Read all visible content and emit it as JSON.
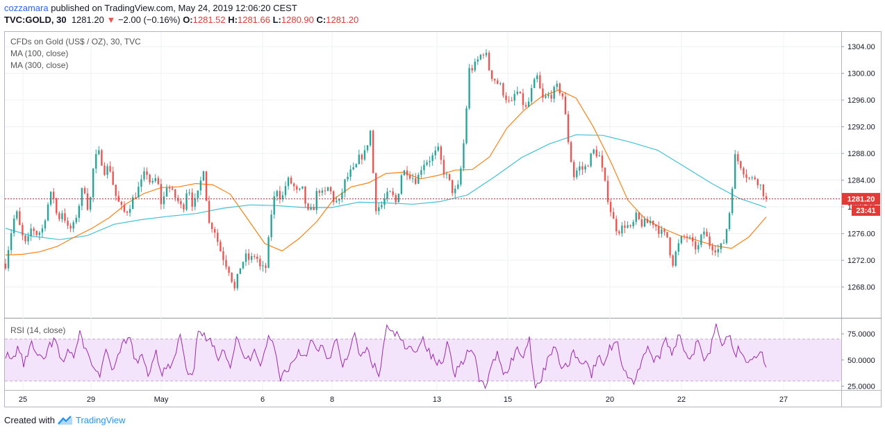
{
  "header": {
    "author": "cozzamara",
    "published": "published on TradingView.com, May 24, 2019 12:06:20 CEST",
    "symbol": "TVC:GOLD, 30",
    "last": "1281.20",
    "change_arrow": "▼",
    "change": "−2.00 (−0.16%)",
    "o_label": "O:",
    "o_value": "1281.52",
    "h_label": "H:",
    "h_value": "1281.66",
    "l_label": "L:",
    "l_value": "1280.90",
    "c_label": "C:",
    "c_value": "1281.20"
  },
  "legend": {
    "main": "CFDs on Gold (US$ / OZ), 30, TVC",
    "ma100": "MA (100, close)",
    "ma300": "MA (300, close)",
    "rsi": "RSI (14, close)"
  },
  "price_tag": {
    "price": "1281.20",
    "countdown": "23:41"
  },
  "footer": {
    "created": "Created with",
    "brand": "TradingView"
  },
  "colors": {
    "up": "#26a69a",
    "down": "#ef5350",
    "ma100": "#ff7f0e",
    "ma300": "#3fc1d9",
    "rsi": "#9c27b0",
    "rsi_band": "#f3e3fb",
    "price_line": "#c62828"
  },
  "chart_data": [
    {
      "type": "candlestick",
      "title": "CFDs on Gold (US$ / OZ), 30, TVC",
      "x_labels": [
        "25",
        "29",
        "May",
        "6",
        "8",
        "13",
        "15",
        "20",
        "22",
        "27"
      ],
      "yticks": [
        1268,
        1272,
        1276,
        1280,
        1284,
        1288,
        1292,
        1296,
        1300,
        1304
      ],
      "ylim": [
        1263.5,
        1306.2
      ],
      "last_price": 1281.2,
      "close_path": [
        1271.5,
        1276,
        1279.5,
        1276,
        1274,
        1277,
        1276,
        1276.5,
        1280,
        1282.5,
        1278,
        1279.5,
        1276.5,
        1277,
        1280,
        1283.5,
        1279,
        1287,
        1288,
        1285.5,
        1286,
        1282,
        1280,
        1279,
        1280.5,
        1282,
        1283.5,
        1285.5,
        1283,
        1284.5,
        1280,
        1283.5,
        1282,
        1281,
        1279.5,
        1283.5,
        1280,
        1282,
        1286,
        1277.5,
        1277,
        1274,
        1272,
        1270.5,
        1267.5,
        1271,
        1272.5,
        1272,
        1273,
        1270.5,
        1271,
        1279,
        1283,
        1281,
        1284,
        1283.5,
        1282,
        1282.5,
        1279,
        1279.5,
        1283,
        1281.5,
        1283,
        1281,
        1280.5,
        1283.5,
        1285,
        1285.5,
        1287.5,
        1288,
        1291.5,
        1280,
        1280,
        1281.5,
        1282,
        1280.5,
        1285,
        1285.5,
        1284.5,
        1284,
        1286.5,
        1287,
        1287.5,
        1288.5,
        1285.5,
        1284,
        1282,
        1283,
        1290,
        1300.5,
        1301,
        1302.5,
        1303.5,
        1300,
        1299,
        1298,
        1296.5,
        1295,
        1297.5,
        1296,
        1294.5,
        1297.5,
        1299.5,
        1296,
        1296.5,
        1297,
        1298,
        1296.5,
        1290,
        1284.5,
        1286,
        1285.5,
        1287,
        1288.5,
        1287.5,
        1283.5,
        1280,
        1277,
        1276.5,
        1277.5,
        1276.5,
        1278.5,
        1277.5,
        1277.5,
        1278,
        1277,
        1276,
        1275.5,
        1271.5,
        1274,
        1275.5,
        1275.5,
        1274,
        1274,
        1276.5,
        1274.5,
        1274,
        1273.5,
        1275,
        1279.5,
        1287.5,
        1286.5,
        1285,
        1284,
        1284.5,
        1283,
        1281.2
      ]
    },
    {
      "type": "line",
      "name": "MA (100, close)",
      "values": [
        1272.8,
        1272.9,
        1273.3,
        1274.1,
        1275.5,
        1276.8,
        1278.4,
        1280.5,
        1282,
        1282.9,
        1283,
        1283.5,
        1283.3,
        1281.9,
        1278.2,
        1274.5,
        1273.4,
        1275.3,
        1277.8,
        1281.2,
        1283,
        1283.6,
        1285,
        1285.2,
        1284.2,
        1284.7,
        1285.5,
        1285.6,
        1287.5,
        1291.8,
        1294.5,
        1296.5,
        1297.5,
        1296.3,
        1292,
        1286.8,
        1281,
        1278.2,
        1276.8,
        1275.7,
        1275,
        1274.2,
        1273.8,
        1275.5,
        1278.5
      ]
    },
    {
      "type": "line",
      "name": "MA (300, close)",
      "values": [
        1276.8,
        1275.6,
        1275.1,
        1275.7,
        1277.4,
        1278.1,
        1278.6,
        1279,
        1279.8,
        1280.3,
        1280.2,
        1279.9,
        1279.9,
        1280.7,
        1280.6,
        1280.4,
        1280.8,
        1281.8,
        1284.5,
        1287.4,
        1289.4,
        1290.8,
        1290.7,
        1289.7,
        1288.5,
        1286,
        1283.5,
        1281.3,
        1279.9
      ]
    },
    {
      "type": "line",
      "name": "RSI (14, close)",
      "bands": [
        30,
        70
      ],
      "yticks": [
        25,
        50,
        75
      ],
      "ylim": [
        22,
        89
      ],
      "values": [
        56,
        48,
        63,
        44,
        67,
        54,
        48,
        63,
        69,
        46,
        60,
        53,
        76,
        57,
        45,
        34,
        58,
        41,
        52,
        66,
        70,
        46,
        53,
        35,
        61,
        38,
        42,
        48,
        75,
        38,
        31,
        84,
        70,
        66,
        52,
        64,
        43,
        71,
        55,
        50,
        63,
        44,
        71,
        66,
        33,
        40,
        47,
        59,
        54,
        68,
        58,
        62,
        48,
        70,
        44,
        58,
        72,
        52,
        60,
        45,
        34,
        82,
        74,
        75,
        61,
        60,
        62,
        71,
        56,
        48,
        45,
        70,
        37,
        46,
        57,
        58,
        30,
        25,
        43,
        59,
        34,
        48,
        60,
        54,
        71,
        24,
        32,
        54,
        63,
        45,
        42,
        59,
        48,
        51,
        36,
        52,
        47,
        62,
        69,
        44,
        34,
        28,
        51,
        64,
        48,
        56,
        68,
        57,
        76,
        59,
        50,
        68,
        52,
        60,
        86,
        66,
        75,
        56,
        62,
        48,
        54,
        60,
        43
      ]
    }
  ]
}
